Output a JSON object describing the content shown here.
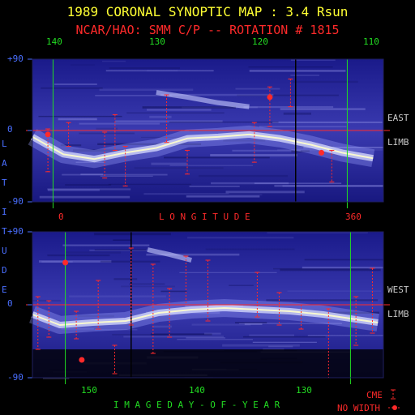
{
  "title": "1989 CORONAL SYNOPTIC MAP : 3.4 Rsun",
  "subtitle": "NCAR/HAO: SMM C/P -- ROTATION # 1815",
  "colors": {
    "title": "#ffff33",
    "subtitle": "#ff2a2a",
    "top_axis": "#22dd22",
    "lat_axis": "#4a6fff",
    "limb": "#c8c8c8",
    "cme": "#ff2a2a",
    "map_dark": "#10106a",
    "map_bright": "#ffffff"
  },
  "chart_data": [
    {
      "type": "heatmap",
      "name": "east-limb-map",
      "limb_label_1": "EAST",
      "limb_label_2": "LIMB",
      "top_ticks": [
        "140",
        "130",
        "120",
        "110"
      ],
      "top_tick_values": [
        140,
        130,
        120,
        110
      ],
      "bottom_ticks": [
        "0",
        "360"
      ],
      "bottom_axis_label": "L O N G I T U D E",
      "y_ticks": [
        "+90",
        "0",
        "-90"
      ],
      "ylim": [
        -90,
        90
      ],
      "xlim": [
        143,
        109
      ],
      "streamer_band": [
        {
          "x": 143,
          "y": -8
        },
        {
          "x": 140,
          "y": -30
        },
        {
          "x": 137,
          "y": -36
        },
        {
          "x": 134,
          "y": -28
        },
        {
          "x": 131,
          "y": -22
        },
        {
          "x": 128,
          "y": -10
        },
        {
          "x": 125,
          "y": -8
        },
        {
          "x": 122,
          "y": -5
        },
        {
          "x": 119,
          "y": -10
        },
        {
          "x": 116,
          "y": -18
        },
        {
          "x": 113,
          "y": -28
        },
        {
          "x": 110,
          "y": -35
        }
      ],
      "upper_band": [
        {
          "x": 131,
          "y": 48
        },
        {
          "x": 128,
          "y": 42
        },
        {
          "x": 125,
          "y": 35
        },
        {
          "x": 122,
          "y": 30
        }
      ],
      "cme_spans": [
        {
          "x": 141.5,
          "y1": 2,
          "y2": -52
        },
        {
          "x": 139.5,
          "y1": 10,
          "y2": -20
        },
        {
          "x": 136.0,
          "y1": -2,
          "y2": -60
        },
        {
          "x": 135.0,
          "y1": 20,
          "y2": -25
        },
        {
          "x": 134.0,
          "y1": -20,
          "y2": -70
        },
        {
          "x": 130.0,
          "y1": 45,
          "y2": -15
        },
        {
          "x": 128.0,
          "y1": -25,
          "y2": -55
        },
        {
          "x": 121.5,
          "y1": 10,
          "y2": -40
        },
        {
          "x": 120.0,
          "y1": 55,
          "y2": 5
        },
        {
          "x": 118.0,
          "y1": 65,
          "y2": 30
        },
        {
          "x": 114.0,
          "y1": -25,
          "y2": -65
        }
      ],
      "cme_no_width": [
        {
          "x": 141.5,
          "y": -5
        },
        {
          "x": 120.0,
          "y": 42
        },
        {
          "x": 115.0,
          "y": -28
        }
      ],
      "marker_lines": [
        {
          "x": 141,
          "kind": "green"
        },
        {
          "x": 117.5,
          "kind": "black"
        },
        {
          "x": 112.5,
          "kind": "green"
        }
      ]
    },
    {
      "type": "heatmap",
      "name": "west-limb-map",
      "limb_label_1": "WEST",
      "limb_label_2": "LIMB",
      "bottom_ticks": [
        "150",
        "140",
        "130"
      ],
      "bottom_tick_values": [
        150,
        140,
        130
      ],
      "bottom_axis_label": "I M A G E   D A Y - O F - Y E A R",
      "y_ticks": [
        "+90",
        "0",
        "-90"
      ],
      "ylim": [
        -90,
        90
      ],
      "xlim": [
        155.5,
        123.5
      ],
      "streamer_band": [
        {
          "x": 155.5,
          "y": -12
        },
        {
          "x": 153,
          "y": -25
        },
        {
          "x": 150,
          "y": -22
        },
        {
          "x": 147,
          "y": -20
        },
        {
          "x": 144,
          "y": -10
        },
        {
          "x": 141,
          "y": -6
        },
        {
          "x": 138,
          "y": -4
        },
        {
          "x": 135,
          "y": -6
        },
        {
          "x": 132,
          "y": -8
        },
        {
          "x": 129,
          "y": -12
        },
        {
          "x": 126,
          "y": -18
        },
        {
          "x": 124,
          "y": -22
        }
      ],
      "upper_band": [
        {
          "x": 145,
          "y": 68
        },
        {
          "x": 143,
          "y": 62
        },
        {
          "x": 141,
          "y": 55
        }
      ],
      "cme_spans": [
        {
          "x": 155.0,
          "y1": 10,
          "y2": -55
        },
        {
          "x": 154.0,
          "y1": 5,
          "y2": -40
        },
        {
          "x": 151.5,
          "y1": -8,
          "y2": -42
        },
        {
          "x": 149.5,
          "y1": 30,
          "y2": -30
        },
        {
          "x": 148.0,
          "y1": -50,
          "y2": -85
        },
        {
          "x": 146.5,
          "y1": 70,
          "y2": -25
        },
        {
          "x": 144.5,
          "y1": 50,
          "y2": -60
        },
        {
          "x": 143.0,
          "y1": 20,
          "y2": -40
        },
        {
          "x": 141.5,
          "y1": 60,
          "y2": 0
        },
        {
          "x": 139.5,
          "y1": 55,
          "y2": -20
        },
        {
          "x": 135.0,
          "y1": 40,
          "y2": -15
        },
        {
          "x": 133.0,
          "y1": 15,
          "y2": -25
        },
        {
          "x": 131.0,
          "y1": 0,
          "y2": -30
        },
        {
          "x": 128.5,
          "y1": -5,
          "y2": -90
        },
        {
          "x": 126.0,
          "y1": 10,
          "y2": -50
        },
        {
          "x": 124.5,
          "y1": 45,
          "y2": -35
        }
      ],
      "cme_no_width": [
        {
          "x": 152.5,
          "y": 52
        },
        {
          "x": 151.0,
          "y": -68
        }
      ],
      "marker_lines": [
        {
          "x": 152.5,
          "kind": "green"
        },
        {
          "x": 146.5,
          "kind": "black"
        },
        {
          "x": 126.5,
          "kind": "green"
        }
      ]
    }
  ],
  "left_axis_label": [
    "L",
    "A",
    "T",
    "I",
    "T",
    "U",
    "D",
    "E"
  ],
  "legend": {
    "cme_label": "CME",
    "no_width_label": "NO WIDTH"
  }
}
